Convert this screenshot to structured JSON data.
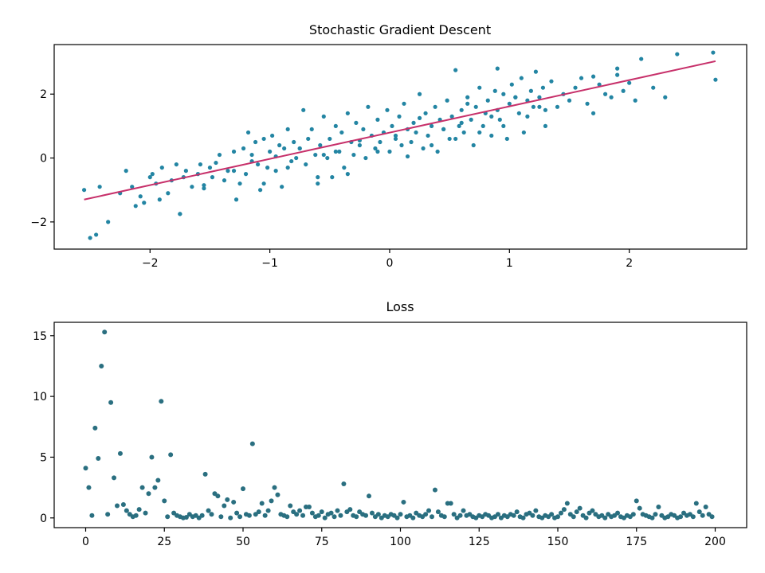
{
  "chart_data": [
    {
      "type": "scatter",
      "title": "Stochastic Gradient Descent",
      "xlabel": "",
      "ylabel": "",
      "xlim": [
        -2.8,
        2.98
      ],
      "ylim": [
        -2.85,
        3.55
      ],
      "xticks": [
        -2,
        -1,
        0,
        1,
        2
      ],
      "xtick_labels": [
        "−2",
        "−1",
        "0",
        "1",
        "2"
      ],
      "yticks": [
        -2,
        0,
        2
      ],
      "ytick_labels": [
        "−2",
        "0",
        "2"
      ],
      "grid": false,
      "point_color": "#2385a3",
      "line_color": "#c7306a",
      "series": [
        {
          "kind": "points",
          "x": [
            -2.55,
            -2.5,
            -2.45,
            -2.42,
            -2.35,
            -2.25,
            -2.2,
            -2.15,
            -2.12,
            -2.08,
            -2.05,
            -2.0,
            -1.98,
            -1.95,
            -1.92,
            -1.9,
            -1.85,
            -1.82,
            -1.78,
            -1.75,
            -1.72,
            -1.7,
            -1.65,
            -1.6,
            -1.58,
            -1.55,
            -1.5,
            -1.48,
            -1.45,
            -1.42,
            -1.38,
            -1.35,
            -1.3,
            -1.28,
            -1.25,
            -1.22,
            -1.2,
            -1.18,
            -1.15,
            -1.12,
            -1.1,
            -1.08,
            -1.05,
            -1.02,
            -1.0,
            -0.98,
            -0.95,
            -0.92,
            -0.9,
            -0.88,
            -0.85,
            -0.82,
            -0.8,
            -0.78,
            -0.75,
            -0.72,
            -0.7,
            -0.68,
            -0.65,
            -0.62,
            -0.6,
            -0.58,
            -0.55,
            -0.52,
            -0.5,
            -0.48,
            -0.45,
            -0.42,
            -0.4,
            -0.38,
            -0.35,
            -0.32,
            -0.3,
            -0.28,
            -0.25,
            -0.22,
            -0.2,
            -0.18,
            -0.15,
            -0.12,
            -0.1,
            -0.08,
            -0.05,
            -0.02,
            0.0,
            0.02,
            0.05,
            0.08,
            0.1,
            0.12,
            0.15,
            0.18,
            0.2,
            0.22,
            0.25,
            0.28,
            0.3,
            0.32,
            0.35,
            0.38,
            0.4,
            0.42,
            0.45,
            0.48,
            0.5,
            0.52,
            0.55,
            0.58,
            0.6,
            0.62,
            0.65,
            0.68,
            0.7,
            0.72,
            0.75,
            0.78,
            0.8,
            0.82,
            0.85,
            0.88,
            0.9,
            0.92,
            0.95,
            0.98,
            1.0,
            1.02,
            1.05,
            1.08,
            1.1,
            1.12,
            1.15,
            1.18,
            1.2,
            1.22,
            1.25,
            1.28,
            1.3,
            1.35,
            1.4,
            1.45,
            1.5,
            1.55,
            1.6,
            1.65,
            1.7,
            1.75,
            1.8,
            1.85,
            1.9,
            1.95,
            2.0,
            2.05,
            2.1,
            2.2,
            2.3,
            2.4,
            2.7,
            2.72,
            -1.75,
            -1.55,
            -1.3,
            -1.05,
            -0.85,
            -0.6,
            -0.35,
            -0.1,
            0.15,
            0.35,
            0.55,
            0.75,
            0.95,
            1.15,
            1.25,
            -0.75,
            -0.55,
            -0.25,
            0.05,
            0.25,
            0.45,
            0.65,
            0.85,
            1.05,
            -1.15,
            -0.95,
            -0.45,
            0.6,
            0.9,
            1.3,
            1.7,
            1.9
          ],
          "y": [
            -1.0,
            -2.5,
            -2.4,
            -0.9,
            -2.0,
            -1.1,
            -0.4,
            -0.9,
            -1.5,
            -1.2,
            -1.4,
            -0.6,
            -0.5,
            -0.8,
            -1.3,
            -0.3,
            -1.1,
            -0.7,
            -0.2,
            -1.75,
            -0.6,
            -0.4,
            -0.9,
            -0.5,
            -0.2,
            -0.85,
            -0.3,
            -0.6,
            -0.15,
            0.1,
            -0.7,
            -0.4,
            0.2,
            -1.3,
            -0.8,
            0.3,
            -0.5,
            0.8,
            0.1,
            0.5,
            -0.2,
            -1.0,
            0.6,
            -0.3,
            0.2,
            0.7,
            -0.4,
            0.4,
            -0.9,
            0.3,
            0.9,
            -0.1,
            0.5,
            0.0,
            0.3,
            1.5,
            -0.2,
            0.6,
            0.9,
            0.1,
            -0.8,
            0.4,
            1.3,
            0.0,
            0.6,
            -0.6,
            1.0,
            0.2,
            0.8,
            -0.3,
            1.4,
            0.5,
            0.1,
            1.1,
            0.4,
            0.9,
            0.0,
            1.6,
            0.7,
            0.3,
            1.2,
            0.5,
            0.8,
            1.5,
            0.2,
            1.0,
            0.6,
            1.3,
            0.4,
            1.7,
            0.9,
            0.5,
            1.1,
            0.8,
            2.0,
            0.3,
            1.4,
            0.7,
            1.0,
            1.6,
            0.2,
            1.2,
            0.9,
            1.8,
            0.6,
            1.3,
            2.75,
            1.0,
            1.5,
            0.8,
            1.9,
            1.2,
            0.4,
            1.6,
            2.2,
            1.0,
            1.4,
            1.8,
            0.7,
            2.1,
            1.5,
            1.2,
            2.0,
            0.6,
            1.7,
            2.3,
            1.9,
            1.4,
            2.5,
            0.8,
            1.8,
            2.1,
            1.6,
            2.7,
            1.9,
            2.2,
            1.0,
            2.4,
            1.6,
            2.0,
            1.8,
            2.2,
            2.5,
            1.7,
            1.4,
            2.3,
            2.0,
            1.9,
            2.6,
            2.1,
            2.35,
            1.8,
            3.1,
            2.2,
            1.9,
            3.25,
            3.3,
            2.45,
            -1.75,
            -0.95,
            -0.4,
            -0.8,
            -0.3,
            -0.6,
            -0.5,
            0.2,
            0.05,
            0.4,
            0.6,
            0.8,
            1.0,
            1.3,
            1.6,
            0.3,
            0.1,
            0.55,
            0.7,
            1.25,
            0.9,
            1.7,
            1.3,
            1.9,
            -0.1,
            0.05,
            0.2,
            1.1,
            2.8,
            1.5,
            2.55,
            2.8
          ]
        },
        {
          "kind": "line",
          "x": [
            -2.55,
            2.72
          ],
          "y": [
            -1.3,
            3.03
          ]
        }
      ]
    },
    {
      "type": "scatter",
      "title": "Loss",
      "xlabel": "",
      "ylabel": "",
      "xlim": [
        -10,
        210
      ],
      "ylim": [
        -0.8,
        16.1
      ],
      "xticks": [
        0,
        25,
        50,
        75,
        100,
        125,
        150,
        175,
        200
      ],
      "xtick_labels": [
        "0",
        "25",
        "50",
        "75",
        "100",
        "125",
        "150",
        "175",
        "200"
      ],
      "yticks": [
        0,
        5,
        10,
        15
      ],
      "ytick_labels": [
        "0",
        "5",
        "10",
        "15"
      ],
      "grid": false,
      "point_color": "#2a6f80",
      "series": [
        {
          "kind": "points",
          "x": [
            0,
            1,
            2,
            3,
            4,
            5,
            6,
            7,
            8,
            9,
            10,
            11,
            12,
            13,
            14,
            15,
            16,
            17,
            18,
            19,
            20,
            21,
            22,
            23,
            24,
            25,
            26,
            27,
            28,
            29,
            30,
            31,
            32,
            33,
            34,
            35,
            36,
            37,
            38,
            39,
            40,
            41,
            42,
            43,
            44,
            45,
            46,
            47,
            48,
            49,
            50,
            51,
            52,
            53,
            54,
            55,
            56,
            57,
            58,
            59,
            60,
            61,
            62,
            63,
            64,
            65,
            66,
            67,
            68,
            69,
            70,
            71,
            72,
            73,
            74,
            75,
            76,
            77,
            78,
            79,
            80,
            81,
            82,
            83,
            84,
            85,
            86,
            87,
            88,
            89,
            90,
            91,
            92,
            93,
            94,
            95,
            96,
            97,
            98,
            99,
            100,
            101,
            102,
            103,
            104,
            105,
            106,
            107,
            108,
            109,
            110,
            111,
            112,
            113,
            114,
            115,
            116,
            117,
            118,
            119,
            120,
            121,
            122,
            123,
            124,
            125,
            126,
            127,
            128,
            129,
            130,
            131,
            132,
            133,
            134,
            135,
            136,
            137,
            138,
            139,
            140,
            141,
            142,
            143,
            144,
            145,
            146,
            147,
            148,
            149,
            150,
            151,
            152,
            153,
            154,
            155,
            156,
            157,
            158,
            159,
            160,
            161,
            162,
            163,
            164,
            165,
            166,
            167,
            168,
            169,
            170,
            171,
            172,
            173,
            174,
            175,
            176,
            177,
            178,
            179,
            180,
            181,
            182,
            183,
            184,
            185,
            186,
            187,
            188,
            189,
            190,
            191,
            192,
            193,
            194,
            195,
            196,
            197,
            198,
            199
          ],
          "y": [
            4.1,
            2.5,
            0.2,
            7.4,
            4.9,
            12.5,
            15.3,
            0.3,
            9.5,
            3.3,
            1.0,
            5.3,
            1.1,
            0.6,
            0.3,
            0.1,
            0.2,
            0.7,
            2.5,
            0.4,
            2.0,
            5.0,
            2.5,
            3.1,
            9.6,
            1.4,
            0.1,
            5.2,
            0.4,
            0.2,
            0.1,
            0.0,
            0.05,
            0.3,
            0.1,
            0.2,
            0.0,
            0.2,
            3.6,
            0.6,
            0.3,
            2.0,
            1.8,
            0.1,
            1.0,
            1.5,
            0.0,
            1.3,
            0.4,
            0.1,
            2.4,
            0.3,
            0.2,
            6.1,
            0.3,
            0.5,
            1.2,
            0.2,
            0.6,
            1.4,
            2.5,
            1.9,
            0.3,
            0.2,
            0.1,
            1.0,
            0.5,
            0.3,
            0.6,
            0.2,
            0.9,
            0.9,
            0.4,
            0.1,
            0.2,
            0.5,
            0.0,
            0.3,
            0.4,
            0.1,
            0.6,
            0.2,
            2.8,
            0.5,
            0.7,
            0.2,
            0.1,
            0.5,
            0.3,
            0.2,
            1.8,
            0.4,
            0.1,
            0.3,
            0.0,
            0.2,
            0.1,
            0.3,
            0.2,
            0.0,
            0.3,
            1.3,
            0.1,
            0.2,
            0.0,
            0.4,
            0.2,
            0.1,
            0.3,
            0.6,
            0.1,
            2.3,
            0.5,
            0.2,
            0.1,
            1.2,
            1.2,
            0.3,
            0.0,
            0.2,
            0.6,
            0.2,
            0.3,
            0.1,
            0.0,
            0.2,
            0.1,
            0.3,
            0.2,
            0.0,
            0.1,
            0.3,
            0.0,
            0.2,
            0.1,
            0.3,
            0.2,
            0.5,
            0.1,
            0.0,
            0.3,
            0.4,
            0.2,
            0.6,
            0.1,
            0.0,
            0.2,
            0.1,
            0.3,
            0.0,
            0.1,
            0.4,
            0.7,
            1.2,
            0.3,
            0.1,
            0.5,
            0.8,
            0.2,
            0.0,
            0.4,
            0.6,
            0.3,
            0.1,
            0.2,
            0.0,
            0.3,
            0.1,
            0.2,
            0.4,
            0.1,
            0.0,
            0.2,
            0.1,
            0.3,
            1.4,
            0.8,
            0.3,
            0.2,
            0.1,
            0.0,
            0.3,
            0.9,
            0.2,
            0.0,
            0.1,
            0.3,
            0.2,
            0.0,
            0.1,
            0.4,
            0.2,
            0.3,
            0.1,
            1.2,
            0.5,
            0.2,
            0.9,
            0.3,
            0.1
          ]
        }
      ]
    }
  ]
}
